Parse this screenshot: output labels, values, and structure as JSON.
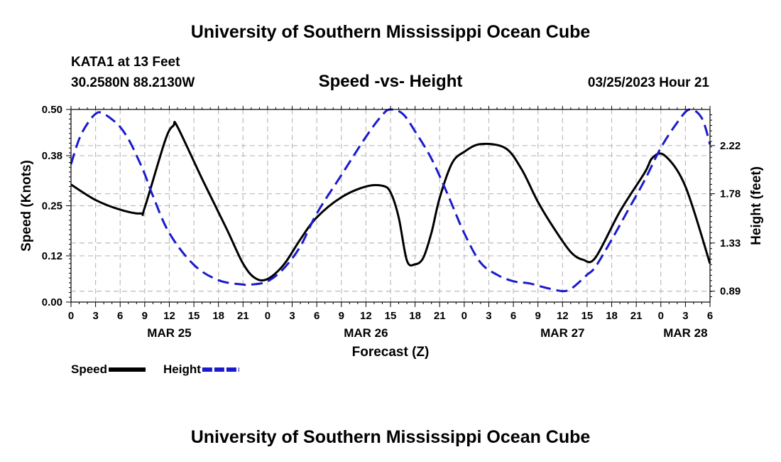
{
  "header": {
    "title": "University of Southern Mississippi Ocean Cube",
    "station": "KATA1 at 13 Feet",
    "coords": "30.2580N  88.2130W",
    "subtitle": "Speed -vs- Height",
    "datetime": "03/25/2023 Hour 21"
  },
  "footer": {
    "title": "University of Southern Mississippi Ocean Cube"
  },
  "colors": {
    "speed": "#000000",
    "height": "#1a1acc",
    "grid": "#bbbbbb"
  },
  "chart_data": {
    "type": "line",
    "title": "Speed -vs- Height",
    "xlabel": "Forecast (Z)",
    "ylabel": "Speed (Knots)",
    "y2label": "Height (feet)",
    "x_hours": [
      0,
      78
    ],
    "x_tick_labels": [
      "0",
      "3",
      "6",
      "9",
      "12",
      "15",
      "18",
      "21",
      "0",
      "3",
      "6",
      "9",
      "12",
      "15",
      "18",
      "21",
      "0",
      "3",
      "6",
      "9",
      "12",
      "15",
      "18",
      "21",
      "0",
      "3",
      "6"
    ],
    "date_labels": [
      {
        "label": "MAR 25",
        "hour": 12
      },
      {
        "label": "MAR 26",
        "hour": 36
      },
      {
        "label": "MAR 27",
        "hour": 60
      },
      {
        "label": "MAR 28",
        "hour": 75
      }
    ],
    "ylim": [
      0,
      0.5
    ],
    "y_ticks": [
      0.0,
      0.12,
      0.25,
      0.38,
      0.5
    ],
    "y_tick_labels": [
      "0.00",
      "0.12",
      "0.25",
      "0.38",
      "0.50"
    ],
    "y2lim": [
      0.79,
      2.55
    ],
    "y2_ticks": [
      0.89,
      1.33,
      1.78,
      2.22
    ],
    "y2_tick_labels": [
      "0.89",
      "1.33",
      "1.78",
      "2.22"
    ],
    "legend": [
      {
        "name": "Speed",
        "style": "solid"
      },
      {
        "name": "Height",
        "style": "dashed"
      }
    ],
    "series": [
      {
        "name": "Speed",
        "axis": "left",
        "x": [
          0,
          3,
          6,
          8.5,
          9,
          11.5,
          12.5,
          13,
          16,
          19,
          21,
          22.5,
          24,
          26,
          28,
          30,
          33,
          36,
          38,
          39,
          40,
          41,
          42,
          43,
          44,
          45,
          46.5,
          48,
          50,
          53,
          55,
          57,
          59,
          61,
          62.5,
          64,
          67,
          70,
          71,
          72.5,
          75,
          78
        ],
        "values": [
          0.305,
          0.265,
          0.24,
          0.23,
          0.245,
          0.42,
          0.458,
          0.455,
          0.32,
          0.19,
          0.1,
          0.062,
          0.06,
          0.098,
          0.163,
          0.22,
          0.272,
          0.3,
          0.302,
          0.285,
          0.22,
          0.108,
          0.098,
          0.115,
          0.18,
          0.27,
          0.36,
          0.39,
          0.41,
          0.4,
          0.345,
          0.26,
          0.19,
          0.13,
          0.11,
          0.115,
          0.235,
          0.335,
          0.375,
          0.38,
          0.3,
          0.1
        ]
      },
      {
        "name": "Height",
        "axis": "right",
        "x": [
          0,
          1,
          2,
          3,
          3.75,
          5,
          6,
          7,
          8,
          9,
          10,
          12,
          15,
          18,
          21,
          22,
          24,
          26,
          28,
          30,
          33,
          36,
          38,
          39,
          40.5,
          42,
          44,
          46,
          48,
          50,
          52,
          54,
          56,
          58,
          60,
          61,
          62,
          63,
          64,
          66,
          68,
          70,
          72,
          74,
          75.5,
          77,
          78
        ],
        "values": [
          2.05,
          2.28,
          2.42,
          2.51,
          2.52,
          2.46,
          2.39,
          2.28,
          2.13,
          1.96,
          1.76,
          1.42,
          1.13,
          0.99,
          0.95,
          0.95,
          0.98,
          1.1,
          1.3,
          1.6,
          1.95,
          2.3,
          2.5,
          2.55,
          2.51,
          2.35,
          2.1,
          1.77,
          1.42,
          1.15,
          1.04,
          0.98,
          0.96,
          0.92,
          0.89,
          0.91,
          0.97,
          1.04,
          1.11,
          1.36,
          1.63,
          1.9,
          2.2,
          2.43,
          2.55,
          2.47,
          2.23
        ]
      }
    ]
  }
}
